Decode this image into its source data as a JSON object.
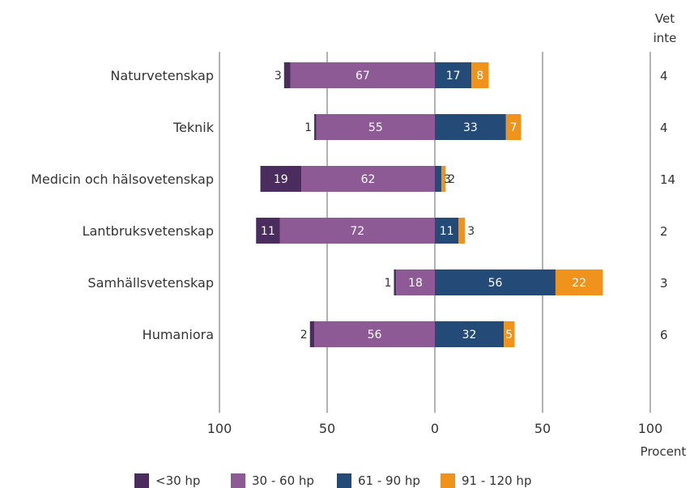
{
  "chart_data": {
    "type": "bar",
    "orientation": "horizontal-diverging",
    "categories": [
      "Naturvetenskap",
      "Teknik",
      "Medicin och hälsovetenskap",
      "Lantbruksvetenskap",
      "Samhällsvetenskap",
      "Humaniora"
    ],
    "series": [
      {
        "name": "<30 hp",
        "side": "left",
        "color": "#4a2c5e",
        "values": [
          3,
          1,
          19,
          11,
          1,
          2
        ]
      },
      {
        "name": "30 - 60 hp",
        "side": "left",
        "color": "#8e5a96",
        "values": [
          67,
          55,
          62,
          72,
          18,
          56
        ]
      },
      {
        "name": "61 - 90 hp",
        "side": "right",
        "color": "#244a77",
        "values": [
          17,
          33,
          3,
          11,
          56,
          32
        ]
      },
      {
        "name": "91 - 120 hp",
        "side": "right",
        "color": "#f0931c",
        "values": [
          8,
          7,
          2,
          3,
          22,
          5
        ]
      }
    ],
    "vet_inte": {
      "header_line1": "Vet",
      "header_line2": "inte",
      "values": [
        "4",
        "4",
        "14",
        "2",
        "3",
        "6"
      ]
    },
    "x_ticks": [
      "100",
      "50",
      "0",
      "50",
      "100"
    ],
    "x_tick_values": [
      -100,
      -50,
      0,
      50,
      100
    ],
    "xlabel": "Procent",
    "xlim": [
      -100,
      100
    ],
    "legend_position": "bottom"
  }
}
